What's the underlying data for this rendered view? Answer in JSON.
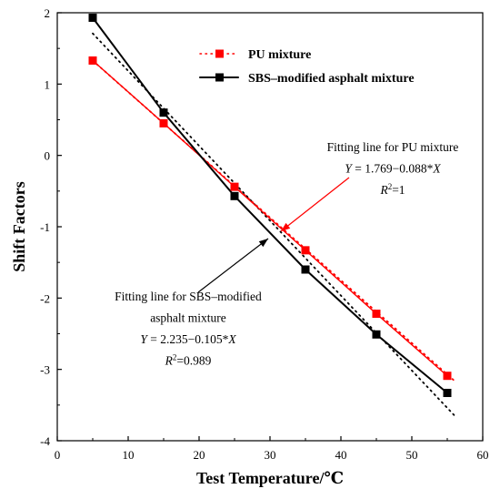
{
  "chart_data": {
    "type": "line",
    "xlabel": "Test Temperature/℃",
    "ylabel": "Shift Factors",
    "xlim": [
      0,
      60
    ],
    "ylim": [
      -4,
      2
    ],
    "xticks": [
      0,
      10,
      20,
      30,
      40,
      50,
      60
    ],
    "yticks": [
      2,
      1,
      0,
      -1,
      -2,
      -3,
      -4
    ],
    "legend_position": "top-right",
    "series": [
      {
        "name": "PU mixture",
        "color": "#ff0000",
        "marker": "square",
        "x": [
          5,
          15,
          25,
          35,
          45,
          55
        ],
        "y": [
          1.33,
          0.45,
          -0.44,
          -1.33,
          -2.22,
          -3.09
        ]
      },
      {
        "name": "SBS–modified asphalt mixture",
        "color": "#000000",
        "marker": "square",
        "x": [
          5,
          15,
          25,
          35,
          45,
          55
        ],
        "y": [
          1.93,
          0.6,
          -0.57,
          -1.6,
          -2.51,
          -3.33
        ]
      }
    ],
    "fits": [
      {
        "series": "PU mixture",
        "intercept": 1.769,
        "slope": -0.088,
        "style": "dotted",
        "color": "#ff0000"
      },
      {
        "series": "SBS–modified asphalt mixture",
        "intercept": 2.235,
        "slope": -0.105,
        "style": "dotted",
        "color": "#000000"
      }
    ],
    "annotations": [
      {
        "id": "pu",
        "lines": [
          {
            "text": "Fitting line for PU mixture"
          },
          {
            "var": "Y",
            "text": " = 1.769−0.088*",
            "var2": "X"
          },
          {
            "var": "R",
            "sup": "2",
            "text": "=1"
          }
        ],
        "arrow_color": "#ff0000"
      },
      {
        "id": "sbs",
        "lines": [
          {
            "text": "Fitting line for SBS–modified"
          },
          {
            "text": "asphalt mixture"
          },
          {
            "var": "Y",
            "text": " = 2.235−0.105*",
            "var2": "X"
          },
          {
            "var": "R",
            "sup": "2",
            "text": "=0.989"
          }
        ],
        "arrow_color": "#000000"
      }
    ]
  }
}
